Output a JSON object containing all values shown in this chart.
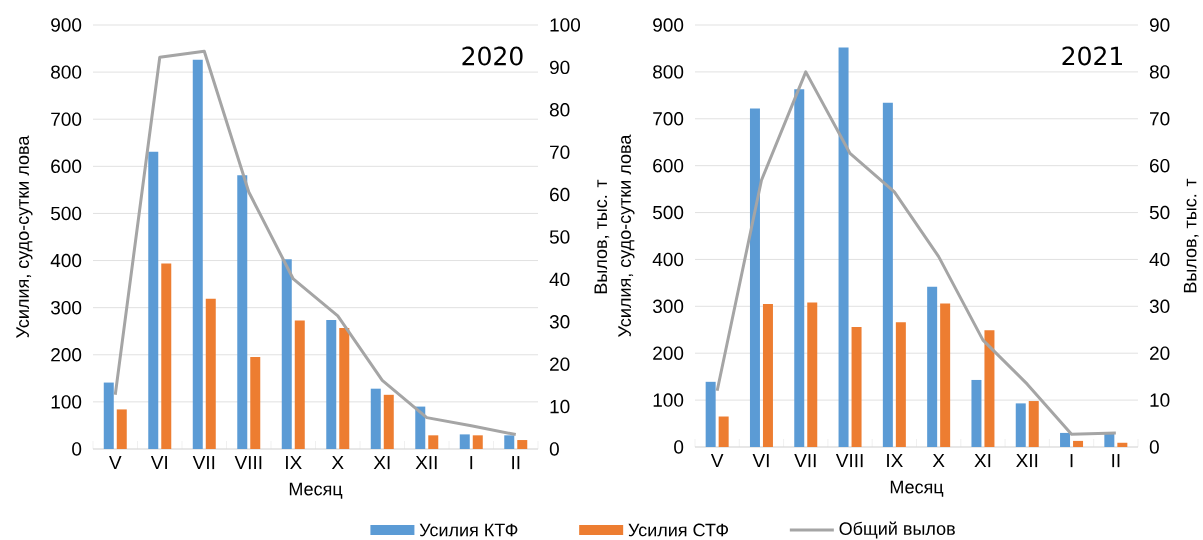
{
  "chart_data": [
    {
      "type": "bar",
      "title": "2020",
      "xlabel": "Месяц",
      "ylabel": "Усилия, судо-сутки лова",
      "y2label": "Вылов, тыс. т",
      "categories": [
        "V",
        "VI",
        "VII",
        "VIII",
        "IX",
        "X",
        "XI",
        "XII",
        "I",
        "II"
      ],
      "series": [
        {
          "name": "Усилия КТФ",
          "color": "#5b9bd5",
          "values": [
            141,
            631,
            826,
            581,
            403,
            274,
            128,
            90,
            31,
            29
          ]
        },
        {
          "name": "Усилия СТФ",
          "color": "#ed7d31",
          "values": [
            84,
            394,
            319,
            195,
            273,
            257,
            115,
            29,
            29,
            19
          ]
        },
        {
          "name": "Общий вылов",
          "type": "line",
          "axis": "y2",
          "color": "#a5a5a5",
          "values": [
            12.8,
            92.4,
            93.8,
            60.6,
            40.1,
            31.4,
            16.2,
            7.4,
            5.5,
            3.4
          ]
        }
      ],
      "ylim": [
        0,
        900
      ],
      "yticks": [
        0,
        100,
        200,
        300,
        400,
        500,
        600,
        700,
        800,
        900
      ],
      "y2lim": [
        0,
        100
      ],
      "y2ticks": [
        0,
        10,
        20,
        30,
        40,
        50,
        60,
        70,
        80,
        90,
        100
      ],
      "grid": "y",
      "legend": "bottom"
    },
    {
      "type": "bar",
      "title": "2021",
      "xlabel": "Месяц",
      "ylabel": "Усилия, судо-сутки лова",
      "y2label": "Вылов, тыс. т",
      "categories": [
        "V",
        "VI",
        "VII",
        "VIII",
        "IX",
        "X",
        "XI",
        "XII",
        "I",
        "II"
      ],
      "series": [
        {
          "color": "#5b9bd5",
          "values": [
            139,
            722,
            763,
            852,
            734,
            342,
            143,
            93,
            30,
            29
          ]
        },
        {
          "color": "#ed7d31",
          "values": [
            65,
            305,
            308,
            256,
            266,
            306,
            249,
            98,
            13,
            9
          ]
        },
        {
          "type": "line",
          "axis": "y2",
          "color": "#a5a5a5",
          "values": [
            12.0,
            56.9,
            80.0,
            62.6,
            54.4,
            40.6,
            22.8,
            13.4,
            2.7,
            3.0
          ]
        }
      ],
      "ylim": [
        0,
        900
      ],
      "yticks": [
        0,
        100,
        200,
        300,
        400,
        500,
        600,
        700,
        800,
        900
      ],
      "y2lim": [
        0,
        90
      ],
      "y2ticks": [
        0,
        10,
        20,
        30,
        40,
        50,
        60,
        70,
        80,
        90
      ],
      "grid": "y"
    }
  ]
}
